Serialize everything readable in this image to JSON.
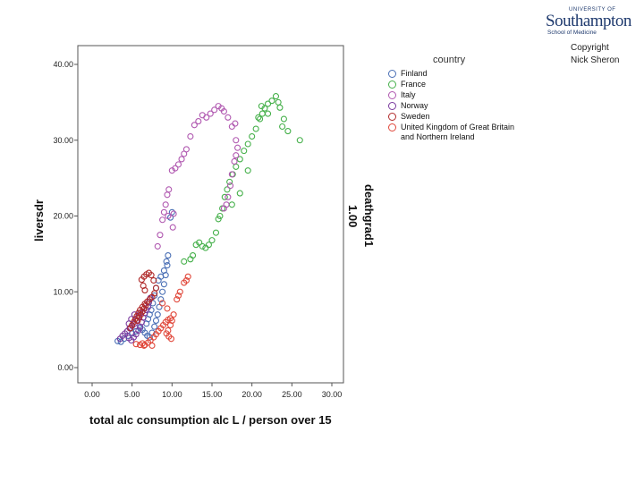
{
  "logo": {
    "university_of": "UNIVERSITY OF",
    "name": "Southampton",
    "school": "School of Medicine"
  },
  "copyright": {
    "line1": "Copyright",
    "line2": "Nick Sheron"
  },
  "chart_data": {
    "type": "scatter",
    "xlabel": "total alc consumption alc L / person over 15",
    "ylabel": "liversdr",
    "xlim": [
      0,
      30
    ],
    "ylim": [
      0,
      40
    ],
    "x_ticks": [
      "0.00",
      "5.00",
      "10.00",
      "15.00",
      "20.00",
      "25.00",
      "30.00"
    ],
    "y_ticks": [
      "0.00",
      "10.00",
      "20.00",
      "30.00",
      "40.00"
    ],
    "grid": false,
    "legend_title": "country",
    "legend_position": "right",
    "panel_label_title": "deathgrad1",
    "panel_label_value": "1.00",
    "series": [
      {
        "name": "Finland",
        "color": "#4a6fb5",
        "points": [
          [
            3.2,
            3.5
          ],
          [
            3.6,
            3.4
          ],
          [
            4.0,
            3.8
          ],
          [
            4.5,
            4.2
          ],
          [
            5.0,
            4.5
          ],
          [
            5.5,
            4.8
          ],
          [
            6.0,
            5.2
          ],
          [
            6.3,
            5.0
          ],
          [
            6.6,
            4.6
          ],
          [
            6.9,
            4.2
          ],
          [
            7.2,
            4.0
          ],
          [
            7.5,
            4.6
          ],
          [
            7.8,
            5.4
          ],
          [
            8.0,
            6.2
          ],
          [
            8.2,
            7.0
          ],
          [
            8.4,
            8.0
          ],
          [
            8.6,
            9.0
          ],
          [
            8.8,
            10.0
          ],
          [
            9.0,
            11.0
          ],
          [
            9.2,
            12.2
          ],
          [
            9.4,
            13.5
          ],
          [
            9.5,
            14.8
          ],
          [
            9.3,
            14.0
          ],
          [
            9.0,
            12.8
          ],
          [
            8.6,
            12.0
          ],
          [
            8.3,
            11.5
          ],
          [
            8.0,
            10.5
          ],
          [
            7.8,
            9.5
          ],
          [
            7.6,
            8.5
          ],
          [
            7.4,
            7.6
          ],
          [
            7.2,
            7.0
          ],
          [
            7.0,
            6.4
          ],
          [
            6.8,
            5.8
          ],
          [
            10.0,
            20.5
          ],
          [
            9.8,
            19.8
          ]
        ]
      },
      {
        "name": "France",
        "color": "#45b04a",
        "points": [
          [
            11.5,
            14.0
          ],
          [
            12.3,
            14.3
          ],
          [
            12.6,
            14.8
          ],
          [
            13.0,
            16.2
          ],
          [
            13.4,
            16.5
          ],
          [
            13.8,
            16.0
          ],
          [
            14.2,
            15.8
          ],
          [
            14.6,
            16.2
          ],
          [
            15.0,
            16.8
          ],
          [
            15.5,
            17.8
          ],
          [
            15.8,
            19.6
          ],
          [
            16.0,
            20.0
          ],
          [
            16.3,
            21.0
          ],
          [
            16.6,
            22.5
          ],
          [
            16.9,
            23.5
          ],
          [
            17.2,
            24.5
          ],
          [
            17.6,
            25.5
          ],
          [
            18.0,
            26.5
          ],
          [
            18.5,
            27.5
          ],
          [
            19.0,
            28.6
          ],
          [
            19.5,
            29.5
          ],
          [
            20.0,
            30.5
          ],
          [
            20.5,
            31.5
          ],
          [
            21.0,
            32.8
          ],
          [
            21.3,
            33.5
          ],
          [
            21.6,
            34.2
          ],
          [
            22.0,
            34.8
          ],
          [
            22.5,
            35.2
          ],
          [
            23.0,
            35.8
          ],
          [
            23.3,
            35.0
          ],
          [
            23.5,
            34.3
          ],
          [
            24.0,
            32.8
          ],
          [
            23.8,
            31.8
          ],
          [
            24.5,
            31.2
          ],
          [
            26.0,
            30.0
          ],
          [
            22.0,
            33.5
          ],
          [
            21.2,
            34.5
          ],
          [
            20.8,
            33.0
          ],
          [
            19.5,
            26.0
          ],
          [
            18.5,
            23.0
          ],
          [
            17.5,
            21.5
          ]
        ]
      },
      {
        "name": "Italy",
        "color": "#b058b0",
        "points": [
          [
            8.2,
            16.0
          ],
          [
            8.5,
            17.5
          ],
          [
            8.8,
            19.5
          ],
          [
            9.0,
            20.5
          ],
          [
            9.2,
            21.5
          ],
          [
            9.4,
            22.8
          ],
          [
            9.6,
            23.5
          ],
          [
            10.0,
            26.0
          ],
          [
            10.4,
            26.3
          ],
          [
            10.8,
            26.8
          ],
          [
            11.2,
            27.5
          ],
          [
            11.5,
            28.2
          ],
          [
            11.8,
            28.8
          ],
          [
            12.3,
            30.5
          ],
          [
            12.8,
            32.0
          ],
          [
            13.3,
            32.5
          ],
          [
            13.8,
            33.3
          ],
          [
            14.3,
            33.0
          ],
          [
            14.8,
            33.5
          ],
          [
            15.3,
            34.0
          ],
          [
            15.8,
            34.5
          ],
          [
            16.2,
            34.2
          ],
          [
            16.5,
            33.8
          ],
          [
            17.0,
            33.0
          ],
          [
            17.5,
            31.8
          ],
          [
            17.9,
            32.2
          ],
          [
            18.0,
            30.0
          ],
          [
            18.2,
            29.0
          ],
          [
            18.0,
            28.0
          ],
          [
            17.8,
            27.2
          ],
          [
            17.5,
            25.5
          ],
          [
            17.3,
            24.0
          ],
          [
            17.0,
            22.5
          ],
          [
            16.8,
            21.5
          ],
          [
            16.5,
            21.0
          ],
          [
            10.2,
            20.3
          ],
          [
            10.1,
            18.5
          ],
          [
            9.5,
            20.0
          ]
        ]
      },
      {
        "name": "Norway",
        "color": "#7a3a9e",
        "points": [
          [
            3.5,
            3.8
          ],
          [
            3.8,
            4.2
          ],
          [
            4.1,
            4.5
          ],
          [
            4.4,
            4.8
          ],
          [
            4.7,
            5.2
          ],
          [
            5.0,
            5.5
          ],
          [
            5.3,
            5.8
          ],
          [
            5.6,
            6.2
          ],
          [
            5.8,
            6.8
          ],
          [
            6.0,
            7.2
          ],
          [
            4.6,
            3.9
          ],
          [
            4.9,
            3.6
          ],
          [
            5.2,
            4.0
          ],
          [
            5.5,
            4.4
          ],
          [
            5.8,
            4.9
          ],
          [
            6.0,
            5.4
          ],
          [
            6.2,
            6.0
          ],
          [
            6.4,
            6.6
          ],
          [
            6.6,
            7.2
          ],
          [
            6.8,
            7.6
          ],
          [
            7.0,
            8.0
          ],
          [
            7.1,
            8.6
          ],
          [
            7.3,
            9.2
          ],
          [
            5.3,
            7.0
          ],
          [
            4.9,
            6.4
          ],
          [
            4.6,
            5.8
          ]
        ]
      },
      {
        "name": "Sweden",
        "color": "#b02a2a",
        "points": [
          [
            6.5,
            12.0
          ],
          [
            6.8,
            12.3
          ],
          [
            7.1,
            12.5
          ],
          [
            7.4,
            12.2
          ],
          [
            7.7,
            11.5
          ],
          [
            8.0,
            10.5
          ],
          [
            7.8,
            9.8
          ],
          [
            7.5,
            9.3
          ],
          [
            7.2,
            9.0
          ],
          [
            6.9,
            8.7
          ],
          [
            6.6,
            8.4
          ],
          [
            6.3,
            8.0
          ],
          [
            6.0,
            7.6
          ],
          [
            5.8,
            7.2
          ],
          [
            5.6,
            6.8
          ],
          [
            5.4,
            6.4
          ],
          [
            5.2,
            6.0
          ],
          [
            5.0,
            5.6
          ],
          [
            4.8,
            5.2
          ],
          [
            6.5,
            7.8
          ],
          [
            6.3,
            7.4
          ],
          [
            6.1,
            7.0
          ],
          [
            6.7,
            8.2
          ],
          [
            5.9,
            6.6
          ],
          [
            5.7,
            6.2
          ],
          [
            6.2,
            11.6
          ],
          [
            6.4,
            10.8
          ],
          [
            6.6,
            10.2
          ]
        ]
      },
      {
        "name": "United Kingdom of Great Britain and Northern Ireland",
        "color": "#e0473a",
        "points": [
          [
            6.0,
            3.0
          ],
          [
            6.3,
            3.2
          ],
          [
            6.6,
            3.0
          ],
          [
            7.0,
            3.3
          ],
          [
            7.3,
            3.6
          ],
          [
            7.7,
            4.0
          ],
          [
            8.0,
            4.4
          ],
          [
            8.3,
            4.8
          ],
          [
            8.6,
            5.2
          ],
          [
            8.9,
            5.6
          ],
          [
            9.2,
            6.0
          ],
          [
            9.5,
            6.3
          ],
          [
            9.8,
            6.5
          ],
          [
            10.0,
            6.2
          ],
          [
            9.8,
            5.6
          ],
          [
            9.5,
            4.9
          ],
          [
            9.3,
            4.5
          ],
          [
            9.6,
            4.1
          ],
          [
            9.9,
            3.8
          ],
          [
            10.2,
            7.0
          ],
          [
            10.6,
            9.0
          ],
          [
            11.0,
            10.0
          ],
          [
            11.5,
            11.2
          ],
          [
            12.0,
            12.0
          ],
          [
            11.8,
            11.5
          ],
          [
            10.8,
            9.5
          ],
          [
            9.4,
            7.8
          ],
          [
            8.8,
            8.5
          ],
          [
            6.5,
            2.9
          ],
          [
            7.5,
            2.9
          ],
          [
            5.5,
            3.1
          ]
        ]
      }
    ]
  }
}
